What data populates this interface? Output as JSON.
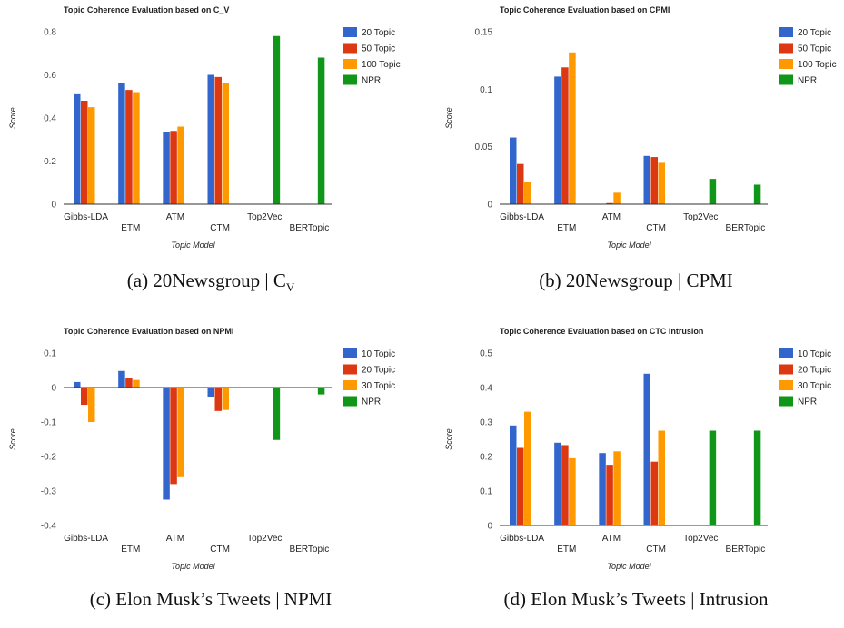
{
  "colors": {
    "series1": "#3366cc",
    "series2": "#dc3912",
    "series3": "#ff9900",
    "npr": "#109618"
  },
  "chart_data": [
    {
      "type": "bar",
      "title": "Topic Coherence Evaluation based on C_V",
      "xlabel": "Topic Model",
      "ylabel": "Score",
      "caption": "(a) 20Newsgroup | C",
      "caption_sub": "V",
      "ylim": [
        0,
        0.8
      ],
      "yticks": [
        0,
        0.2,
        0.4,
        0.6,
        0.8
      ],
      "ytick_labels": [
        "0",
        "0.2",
        "0.4",
        "0.6",
        "0.8"
      ],
      "categories": [
        "Gibbs-LDA",
        "ETM",
        "ATM",
        "CTM",
        "Top2Vec",
        "BERTopic"
      ],
      "legend_position": "right",
      "series": [
        {
          "name": "20 Topic",
          "values": [
            0.51,
            0.56,
            0.335,
            0.6,
            null,
            null
          ]
        },
        {
          "name": "50 Topic",
          "values": [
            0.48,
            0.53,
            0.34,
            0.59,
            null,
            null
          ]
        },
        {
          "name": "100 Topic",
          "values": [
            0.45,
            0.52,
            0.36,
            0.56,
            null,
            null
          ]
        },
        {
          "name": "NPR",
          "values": [
            null,
            null,
            null,
            null,
            0.78,
            0.68
          ]
        }
      ]
    },
    {
      "type": "bar",
      "title": "Topic Coherence Evaluation based on CPMI",
      "xlabel": "Topic Model",
      "ylabel": "Score",
      "caption": "(b) 20Newsgroup | CPMI",
      "caption_sub": "",
      "ylim": [
        0,
        0.15
      ],
      "yticks": [
        0,
        0.05,
        0.1,
        0.15
      ],
      "ytick_labels": [
        "0",
        "0.05",
        "0.1",
        "0.15"
      ],
      "categories": [
        "Gibbs-LDA",
        "ETM",
        "ATM",
        "CTM",
        "Top2Vec",
        "BERTopic"
      ],
      "legend_position": "right",
      "series": [
        {
          "name": "20 Topic",
          "values": [
            0.058,
            0.111,
            0.0,
            0.042,
            null,
            null
          ]
        },
        {
          "name": "50 Topic",
          "values": [
            0.035,
            0.119,
            0.001,
            0.041,
            null,
            null
          ]
        },
        {
          "name": "100 Topic",
          "values": [
            0.019,
            0.132,
            0.01,
            0.036,
            null,
            null
          ]
        },
        {
          "name": "NPR",
          "values": [
            null,
            null,
            null,
            null,
            0.022,
            0.017
          ]
        }
      ]
    },
    {
      "type": "bar",
      "title": "Topic Coherence Evaluation based on NPMI",
      "xlabel": "Topic Model",
      "ylabel": "Score",
      "caption": "(c) Elon Musk’s Tweets | NPMI",
      "caption_sub": "",
      "ylim": [
        -0.4,
        0.1
      ],
      "yticks": [
        -0.4,
        -0.3,
        -0.2,
        -0.1,
        0,
        0.1
      ],
      "ytick_labels": [
        "-0.4",
        "-0.3",
        "-0.2",
        "-0.1",
        "0",
        "0.1"
      ],
      "categories": [
        "Gibbs-LDA",
        "ETM",
        "ATM",
        "CTM",
        "Top2Vec",
        "BERTopic"
      ],
      "legend_position": "right",
      "series": [
        {
          "name": "10 Topic",
          "values": [
            0.016,
            0.048,
            -0.325,
            -0.027,
            null,
            null
          ]
        },
        {
          "name": "20 Topic",
          "values": [
            -0.05,
            0.027,
            -0.28,
            -0.068,
            null,
            null
          ]
        },
        {
          "name": "30 Topic",
          "values": [
            -0.1,
            0.022,
            -0.26,
            -0.065,
            null,
            null
          ]
        },
        {
          "name": "NPR",
          "values": [
            null,
            null,
            null,
            null,
            -0.152,
            -0.02
          ]
        }
      ]
    },
    {
      "type": "bar",
      "title": "Topic Coherence Evaluation based on CTC Intrusion",
      "xlabel": "Topic Model",
      "ylabel": "Score",
      "caption": "(d) Elon Musk’s Tweets | Intrusion",
      "caption_sub": "",
      "ylim": [
        0,
        0.5
      ],
      "yticks": [
        0,
        0.1,
        0.2,
        0.3,
        0.4,
        0.5
      ],
      "ytick_labels": [
        "0",
        "0.1",
        "0.2",
        "0.3",
        "0.4",
        "0.5"
      ],
      "categories": [
        "Gibbs-LDA",
        "ETM",
        "ATM",
        "CTM",
        "Top2Vec",
        "BERTopic"
      ],
      "legend_position": "right",
      "series": [
        {
          "name": "10 Topic",
          "values": [
            0.29,
            0.24,
            0.21,
            0.44,
            null,
            null
          ]
        },
        {
          "name": "20 Topic",
          "values": [
            0.225,
            0.233,
            0.176,
            0.185,
            null,
            null
          ]
        },
        {
          "name": "30 Topic",
          "values": [
            0.33,
            0.195,
            0.215,
            0.275,
            null,
            null
          ]
        },
        {
          "name": "NPR",
          "values": [
            null,
            null,
            null,
            null,
            0.275,
            0.275
          ]
        }
      ]
    }
  ]
}
